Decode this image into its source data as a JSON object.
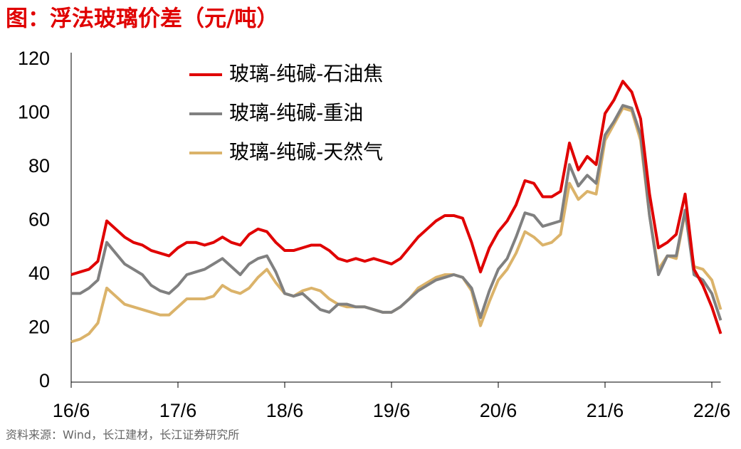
{
  "chart_data": {
    "type": "line",
    "title": "图：浮法玻璃价差（元/吨）",
    "source": "资料来源：Wind，长江建材，长江证券研究所",
    "categories": [
      "16/6",
      null,
      null,
      null,
      null,
      null,
      null,
      null,
      null,
      null,
      null,
      null,
      "17/6",
      null,
      null,
      null,
      null,
      null,
      null,
      null,
      null,
      null,
      null,
      null,
      "18/6",
      null,
      null,
      null,
      null,
      null,
      null,
      null,
      null,
      null,
      null,
      null,
      "19/6",
      null,
      null,
      null,
      null,
      null,
      null,
      null,
      null,
      null,
      null,
      null,
      "20/6",
      null,
      null,
      null,
      null,
      null,
      null,
      null,
      null,
      null,
      null,
      null,
      "21/6",
      null,
      null,
      null,
      null,
      null,
      null,
      null,
      null,
      null,
      null,
      null,
      "22/6",
      null
    ],
    "series": [
      {
        "name": "玻璃-纯碱-石油焦",
        "color": "#e00000",
        "values": [
          40,
          41,
          42,
          45,
          60,
          57,
          54,
          52,
          51,
          49,
          48,
          47,
          50,
          52,
          52,
          51,
          52,
          54,
          52,
          51,
          55,
          57,
          56,
          52,
          49,
          49,
          50,
          51,
          51,
          49,
          46,
          45,
          46,
          45,
          46,
          45,
          44,
          46,
          50,
          54,
          57,
          60,
          62,
          62,
          61,
          52,
          41,
          50,
          56,
          60,
          66,
          75,
          74,
          69,
          69,
          71,
          89,
          79,
          84,
          81,
          100,
          105,
          112,
          108,
          98,
          70,
          50,
          52,
          55,
          70,
          42,
          36,
          28,
          18
        ]
      },
      {
        "name": "玻璃-纯碱-重油",
        "color": "#808080",
        "values": [
          33,
          33,
          35,
          38,
          52,
          48,
          44,
          42,
          40,
          36,
          34,
          33,
          36,
          40,
          41,
          42,
          44,
          46,
          43,
          40,
          44,
          46,
          47,
          41,
          33,
          32,
          33,
          30,
          27,
          26,
          29,
          29,
          28,
          28,
          27,
          26,
          26,
          28,
          31,
          34,
          36,
          38,
          39,
          40,
          39,
          35,
          24,
          34,
          42,
          46,
          54,
          63,
          62,
          58,
          59,
          60,
          81,
          73,
          77,
          74,
          92,
          97,
          103,
          102,
          92,
          62,
          40,
          47,
          47,
          64,
          40,
          38,
          33,
          23
        ]
      },
      {
        "name": "玻璃-纯碱-天然气",
        "color": "#dbb36a",
        "values": [
          15,
          16,
          18,
          22,
          35,
          32,
          29,
          28,
          27,
          26,
          25,
          25,
          28,
          31,
          31,
          31,
          32,
          36,
          34,
          33,
          35,
          39,
          42,
          37,
          33,
          32,
          34,
          35,
          34,
          31,
          29,
          28,
          28,
          28,
          27,
          26,
          26,
          28,
          31,
          35,
          37,
          39,
          40,
          40,
          39,
          34,
          21,
          30,
          38,
          42,
          48,
          56,
          54,
          51,
          52,
          55,
          74,
          68,
          71,
          70,
          90,
          96,
          102,
          101,
          90,
          62,
          42,
          47,
          46,
          63,
          43,
          42,
          38,
          27
        ]
      }
    ],
    "ylim": [
      0,
      120
    ],
    "yticks": [
      0,
      20,
      40,
      60,
      80,
      100,
      120
    ],
    "grid": false,
    "legend": "top-left"
  }
}
